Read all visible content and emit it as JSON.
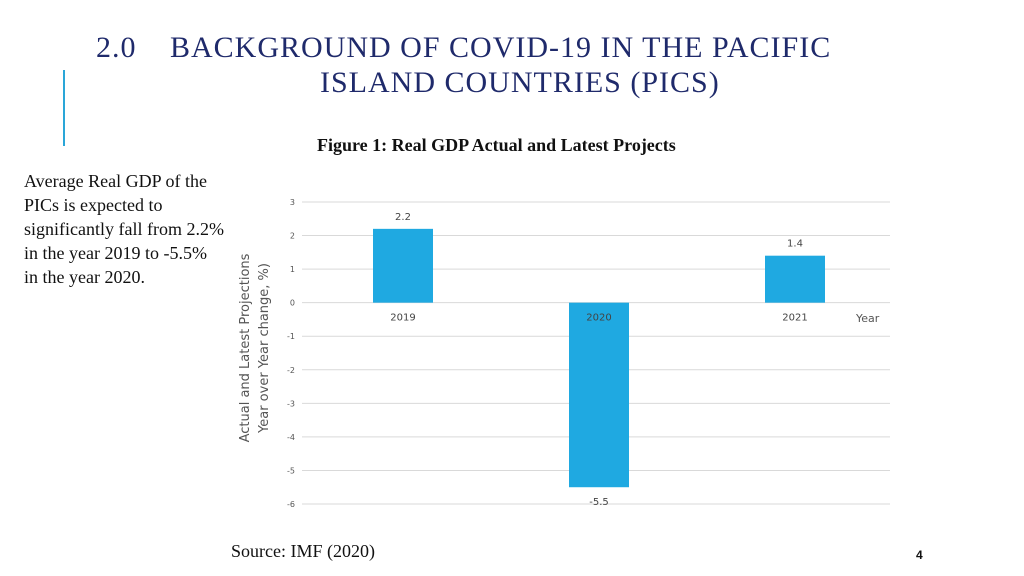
{
  "slide": {
    "section_number": "2.0",
    "title_line1": "BACKGROUND OF COVID-19 IN THE PACIFIC",
    "title_line2": "ISLAND COUNTRIES (PICS)",
    "figure_caption": "Figure 1: Real GDP Actual and Latest Projects",
    "side_text": "Average Real GDP of the PICs is expected to significantly fall from 2.2% in the year 2019 to -5.5% in the year 2020.",
    "source": "Source: IMF (2020)",
    "page_number": "4",
    "accent_color": "#2aa6d8",
    "title_color": "#1f2a6b"
  },
  "chart_data": {
    "type": "bar",
    "categories": [
      "2019",
      "2020",
      "2021"
    ],
    "values": [
      2.2,
      -5.5,
      1.4
    ],
    "data_labels": [
      "2.2",
      "-5.5",
      "1.4"
    ],
    "title": "Figure 1: Real GDP Actual and Latest Projects",
    "xlabel": "Year",
    "ylabel_line1": "Actual and Latest Projections",
    "ylabel_line2": "Year over Year change, %)",
    "ylim": [
      -6,
      3
    ],
    "yticks": [
      3,
      2,
      1,
      0,
      -1,
      -2,
      -3,
      -4,
      -5,
      -6
    ],
    "grid": true,
    "bar_color": "#1fa9e1"
  }
}
